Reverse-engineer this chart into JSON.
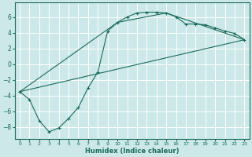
{
  "xlabel": "Humidex (Indice chaleur)",
  "bg_color": "#cce8e8",
  "grid_color": "#ffffff",
  "line_color": "#1a6b5a",
  "xlim": [
    -0.5,
    23.5
  ],
  "ylim": [
    -9.5,
    7.8
  ],
  "xticks": [
    0,
    1,
    2,
    3,
    4,
    5,
    6,
    7,
    8,
    9,
    10,
    11,
    12,
    13,
    14,
    15,
    16,
    17,
    18,
    19,
    20,
    21,
    22,
    23
  ],
  "yticks": [
    -8,
    -6,
    -4,
    -2,
    0,
    2,
    4,
    6
  ],
  "curve1_x": [
    0,
    1,
    2,
    3,
    4,
    5,
    6,
    7,
    8,
    9,
    10,
    11,
    12,
    13,
    14,
    15,
    16,
    17,
    18,
    19,
    20,
    21,
    22,
    23
  ],
  "curve1_y": [
    -3.5,
    -4.5,
    -7.2,
    -8.6,
    -8.1,
    -6.9,
    -5.5,
    -3.0,
    -1.0,
    4.2,
    5.3,
    6.0,
    6.5,
    6.6,
    6.6,
    6.5,
    6.0,
    5.1,
    5.1,
    5.0,
    4.6,
    4.2,
    3.9,
    3.1
  ],
  "line2_x": [
    0,
    23
  ],
  "line2_y": [
    -3.5,
    3.1
  ],
  "line3_x": [
    0,
    10,
    15,
    23
  ],
  "line3_y": [
    -3.5,
    5.3,
    6.5,
    3.1
  ],
  "xlabel_fontsize": 6.0,
  "tick_fontsize_x": 4.5,
  "tick_fontsize_y": 5.5
}
